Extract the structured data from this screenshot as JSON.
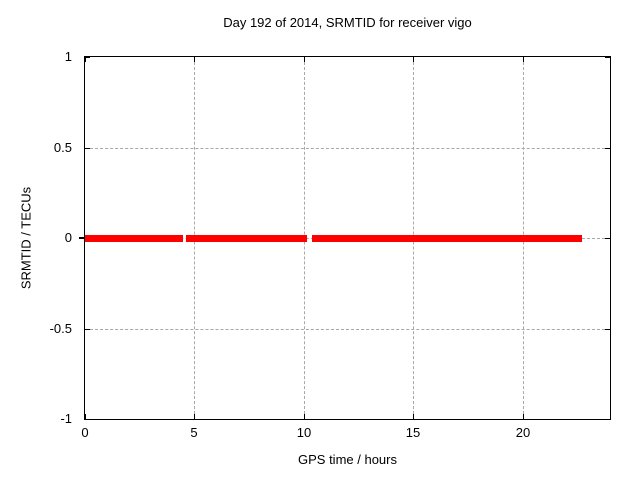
{
  "window": {
    "background": "#ffffff"
  },
  "chart_data": {
    "type": "line",
    "title": "Day 192 of 2014, SRMTID for receiver vigo",
    "xlabel": "GPS time / hours",
    "ylabel": "SRMTID / TECUs",
    "xlim": [
      0,
      24
    ],
    "ylim": [
      -1,
      1
    ],
    "xticks": [
      {
        "value": 0,
        "label": "0"
      },
      {
        "value": 5,
        "label": "5"
      },
      {
        "value": 10,
        "label": "10"
      },
      {
        "value": 15,
        "label": "15"
      },
      {
        "value": 20,
        "label": "20"
      }
    ],
    "yticks": [
      {
        "value": -1,
        "label": "-1"
      },
      {
        "value": -0.5,
        "label": "-0.5"
      },
      {
        "value": 0,
        "label": "0"
      },
      {
        "value": 0.5,
        "label": "0.5"
      },
      {
        "value": 1,
        "label": "1"
      }
    ],
    "grid": true,
    "legend": "none",
    "colors": {
      "series": "#ff0000",
      "grid": "#a8a8a8",
      "axis": "#000000",
      "text": "#000000"
    },
    "series": [
      {
        "name": "SRMTID",
        "color": "#ff0000",
        "y_value": 0,
        "line_thickness_px": 7,
        "segments_hours": [
          [
            0.0,
            4.49
          ],
          [
            4.61,
            10.15
          ],
          [
            10.36,
            22.72
          ]
        ],
        "gaps_hours": [
          [
            4.49,
            4.61
          ],
          [
            10.15,
            10.36
          ]
        ]
      }
    ]
  }
}
